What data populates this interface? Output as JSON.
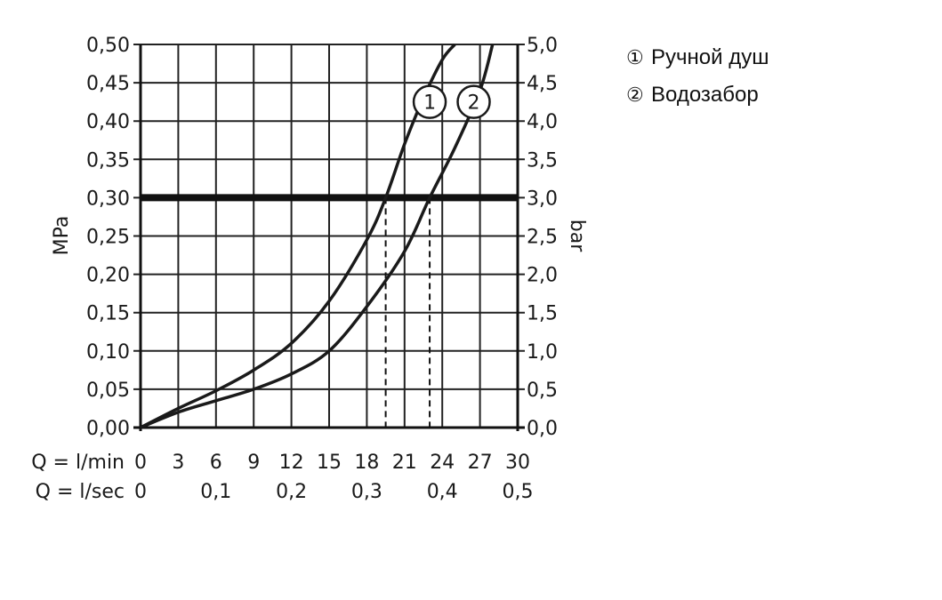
{
  "chart_data": {
    "type": "line",
    "ylabel_left": "MPa",
    "ylabel_right": "bar",
    "xaxis_rows": [
      {
        "label": "Q = l/min",
        "ticks": [
          "0",
          "3",
          "6",
          "9",
          "12",
          "15",
          "18",
          "21",
          "24",
          "27",
          "30"
        ],
        "values": [
          0,
          3,
          6,
          9,
          12,
          15,
          18,
          21,
          24,
          27,
          30
        ]
      },
      {
        "label": "Q = l/sec",
        "ticks": [
          "0",
          "0,1",
          "0,2",
          "0,3",
          "0,4",
          "0,5"
        ],
        "values": [
          0,
          6,
          12,
          18,
          24,
          30
        ]
      }
    ],
    "xlim": [
      0,
      30
    ],
    "ylim": [
      0,
      0.5
    ],
    "y_ticks_left": [
      "0,00",
      "0,05",
      "0,10",
      "0,15",
      "0,20",
      "0,25",
      "0,30",
      "0,35",
      "0,40",
      "0,45",
      "0,50"
    ],
    "y_ticks_right": [
      "0,0",
      "0,5",
      "1,0",
      "1,5",
      "2,0",
      "2,5",
      "3,0",
      "3,5",
      "4,0",
      "4,5",
      "5,0"
    ],
    "y_tick_values": [
      0,
      0.05,
      0.1,
      0.15,
      0.2,
      0.25,
      0.3,
      0.35,
      0.4,
      0.45,
      0.5
    ],
    "grid": true,
    "reference_line": {
      "y": 0.3
    },
    "series": [
      {
        "name": "Ручной душ",
        "marker": "①",
        "label": "1",
        "x": [
          0,
          3,
          6,
          9,
          12,
          15,
          18,
          19.5,
          21,
          22.5,
          24,
          25
        ],
        "y": [
          0,
          0.025,
          0.048,
          0.075,
          0.11,
          0.165,
          0.245,
          0.3,
          0.37,
          0.43,
          0.48,
          0.5
        ],
        "crossing_x": 19.5
      },
      {
        "name": "Водозабор",
        "marker": "②",
        "label": "2",
        "x": [
          0,
          3,
          6,
          9,
          12,
          15,
          18,
          21,
          23,
          25,
          27,
          28
        ],
        "y": [
          0,
          0.02,
          0.035,
          0.05,
          0.07,
          0.1,
          0.158,
          0.23,
          0.3,
          0.365,
          0.44,
          0.5
        ],
        "crossing_x": 23
      }
    ]
  }
}
